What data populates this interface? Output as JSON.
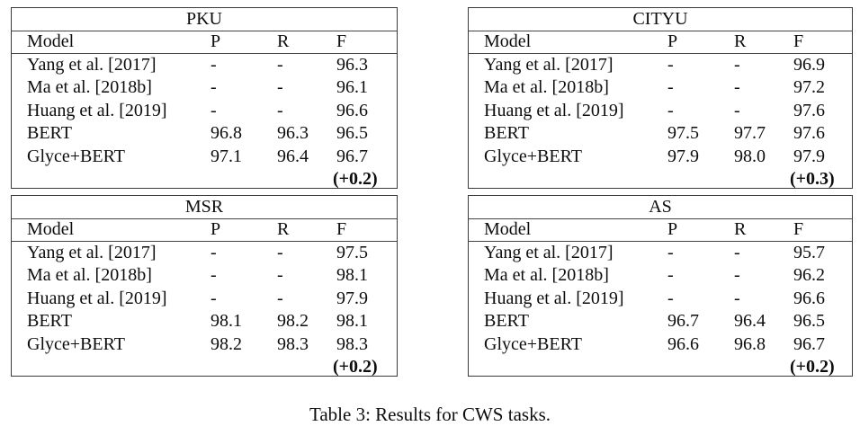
{
  "page": {
    "background": "#ffffff",
    "text_color": "#0d0d0d",
    "border_color": "#3a3a3a",
    "caption": "Table 3: Results for CWS tasks."
  },
  "tables": [
    {
      "title": "PKU",
      "columns": [
        "Model",
        "P",
        "R",
        "F"
      ],
      "rows": [
        [
          "Yang et al. [2017]",
          "-",
          "-",
          "96.3"
        ],
        [
          "Ma et al. [2018b]",
          "-",
          "-",
          "96.1"
        ],
        [
          "Huang et al. [2019]",
          "-",
          "-",
          "96.6"
        ],
        [
          "BERT",
          "96.8",
          "96.3",
          "96.5"
        ],
        [
          "Glyce+BERT",
          "97.1",
          "96.4",
          "96.7"
        ]
      ],
      "delta": "(+0.2)"
    },
    {
      "title": "CITYU",
      "columns": [
        "Model",
        "P",
        "R",
        "F"
      ],
      "rows": [
        [
          "Yang et al. [2017]",
          "-",
          "-",
          "96.9"
        ],
        [
          "Ma et al. [2018b]",
          "-",
          "-",
          "97.2"
        ],
        [
          "Huang et al. [2019]",
          "-",
          "-",
          "97.6"
        ],
        [
          "BERT",
          "97.5",
          "97.7",
          "97.6"
        ],
        [
          "Glyce+BERT",
          "97.9",
          "98.0",
          "97.9"
        ]
      ],
      "delta": "(+0.3)"
    },
    {
      "title": "MSR",
      "columns": [
        "Model",
        "P",
        "R",
        "F"
      ],
      "rows": [
        [
          "Yang et al. [2017]",
          "-",
          "-",
          "97.5"
        ],
        [
          "Ma et al. [2018b]",
          "-",
          "-",
          "98.1"
        ],
        [
          "Huang et al. [2019]",
          "-",
          "-",
          "97.9"
        ],
        [
          "BERT",
          "98.1",
          "98.2",
          "98.1"
        ],
        [
          "Glyce+BERT",
          "98.2",
          "98.3",
          "98.3"
        ]
      ],
      "delta": "(+0.2)"
    },
    {
      "title": "AS",
      "columns": [
        "Model",
        "P",
        "R",
        "F"
      ],
      "rows": [
        [
          "Yang et al. [2017]",
          "-",
          "-",
          "95.7"
        ],
        [
          "Ma et al. [2018b]",
          "-",
          "-",
          "96.2"
        ],
        [
          "Huang et al. [2019]",
          "-",
          "-",
          "96.6"
        ],
        [
          "BERT",
          "96.7",
          "96.4",
          "96.5"
        ],
        [
          "Glyce+BERT",
          "96.6",
          "96.8",
          "96.7"
        ]
      ],
      "delta": "(+0.2)"
    }
  ]
}
